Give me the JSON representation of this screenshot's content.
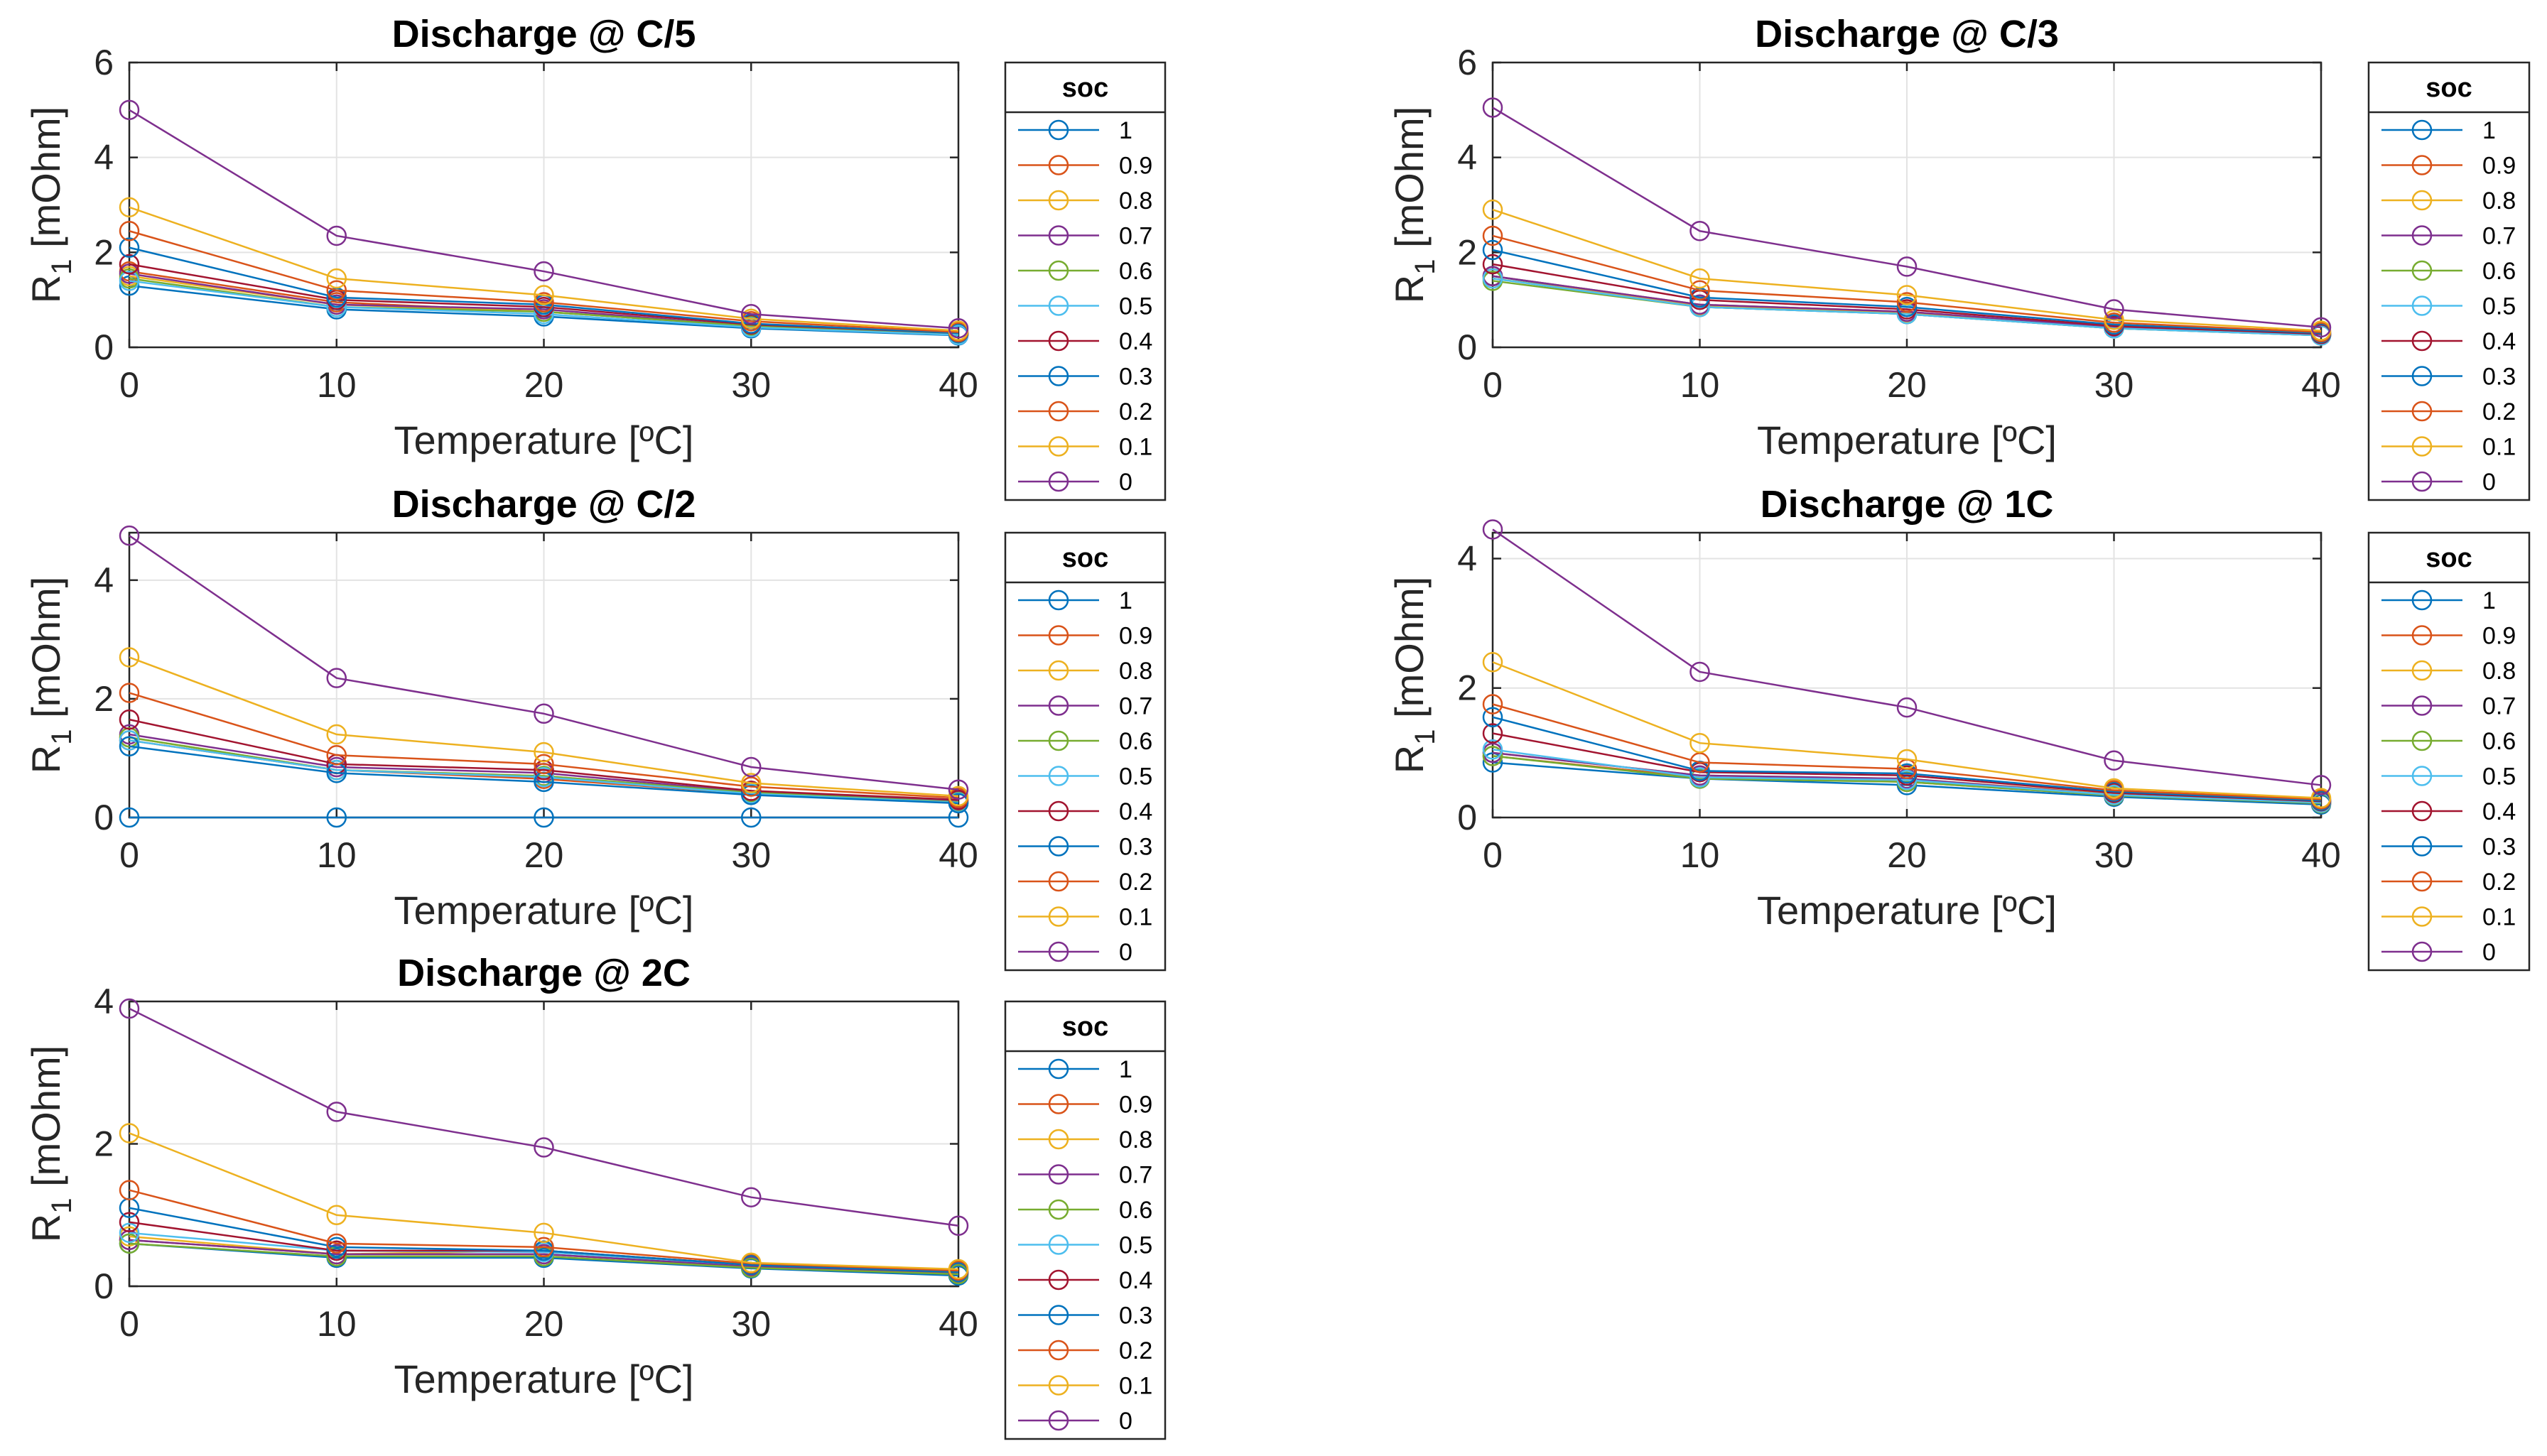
{
  "legend_title": "soc",
  "soc_levels": [
    "1",
    "0.9",
    "0.8",
    "0.7",
    "0.6",
    "0.5",
    "0.4",
    "0.3",
    "0.2",
    "0.1",
    "0"
  ],
  "series_colors": [
    "#0072BD",
    "#D95319",
    "#EDB120",
    "#7E2F8E",
    "#77AC30",
    "#4DBEEE",
    "#A2142F",
    "#0072BD",
    "#D95319",
    "#EDB120",
    "#7E2F8E"
  ],
  "chart_data": [
    {
      "type": "line",
      "title": "Discharge @ C/5",
      "xlabel": "Temperature [ºC]",
      "ylabel_main": "R",
      "ylabel_sub": "1",
      "ylabel_rest": " [mOhm]",
      "x": [
        0,
        10,
        20,
        30,
        40
      ],
      "xlim": [
        0,
        40
      ],
      "ylim": [
        0,
        6
      ],
      "yticks": [
        0,
        2,
        4,
        6
      ],
      "grid": true,
      "legend": "right",
      "series": [
        {
          "name": "1",
          "values": [
            1.3,
            0.8,
            0.65,
            0.4,
            0.25
          ]
        },
        {
          "name": "0.9",
          "values": [
            1.6,
            0.95,
            0.75,
            0.45,
            0.28
          ]
        },
        {
          "name": "0.8",
          "values": [
            1.5,
            0.9,
            0.75,
            0.45,
            0.27
          ]
        },
        {
          "name": "0.7",
          "values": [
            1.55,
            0.9,
            0.8,
            0.45,
            0.28
          ]
        },
        {
          "name": "0.6",
          "values": [
            1.45,
            0.85,
            0.75,
            0.45,
            0.27
          ]
        },
        {
          "name": "0.5",
          "values": [
            1.4,
            0.85,
            0.7,
            0.42,
            0.26
          ]
        },
        {
          "name": "0.4",
          "values": [
            1.75,
            1.0,
            0.85,
            0.48,
            0.3
          ]
        },
        {
          "name": "0.3",
          "values": [
            2.1,
            1.05,
            0.9,
            0.5,
            0.3
          ]
        },
        {
          "name": "0.2",
          "values": [
            2.45,
            1.2,
            0.95,
            0.55,
            0.32
          ]
        },
        {
          "name": "0.1",
          "values": [
            2.95,
            1.45,
            1.1,
            0.6,
            0.35
          ]
        },
        {
          "name": "0",
          "values": [
            5.0,
            2.35,
            1.6,
            0.7,
            0.4
          ]
        }
      ]
    },
    {
      "type": "line",
      "title": "Discharge @ C/3",
      "xlabel": "Temperature [ºC]",
      "ylabel_main": "R",
      "ylabel_sub": "1",
      "ylabel_rest": " [mOhm]",
      "x": [
        0,
        10,
        20,
        30,
        40
      ],
      "xlim": [
        0,
        40
      ],
      "ylim": [
        0,
        6
      ],
      "yticks": [
        0,
        2,
        4,
        6
      ],
      "grid": true,
      "legend": "right",
      "series": [
        {
          "name": "1",
          "values": [
            1.5,
            0.85,
            0.7,
            0.4,
            0.25
          ]
        },
        {
          "name": "0.9",
          "values": [
            1.5,
            0.9,
            0.75,
            0.42,
            0.26
          ]
        },
        {
          "name": "0.8",
          "values": [
            1.45,
            0.88,
            0.72,
            0.42,
            0.26
          ]
        },
        {
          "name": "0.7",
          "values": [
            1.5,
            0.9,
            0.75,
            0.43,
            0.27
          ]
        },
        {
          "name": "0.6",
          "values": [
            1.4,
            0.85,
            0.7,
            0.4,
            0.25
          ]
        },
        {
          "name": "0.5",
          "values": [
            1.45,
            0.85,
            0.7,
            0.4,
            0.25
          ]
        },
        {
          "name": "0.4",
          "values": [
            1.75,
            1.0,
            0.8,
            0.45,
            0.28
          ]
        },
        {
          "name": "0.3",
          "values": [
            2.05,
            1.05,
            0.85,
            0.48,
            0.3
          ]
        },
        {
          "name": "0.2",
          "values": [
            2.35,
            1.2,
            0.95,
            0.52,
            0.32
          ]
        },
        {
          "name": "0.1",
          "values": [
            2.9,
            1.45,
            1.1,
            0.58,
            0.35
          ]
        },
        {
          "name": "0",
          "values": [
            5.05,
            2.45,
            1.7,
            0.8,
            0.42
          ]
        }
      ]
    },
    {
      "type": "line",
      "title": "Discharge @ C/2",
      "xlabel": "Temperature [ºC]",
      "ylabel_main": "R",
      "ylabel_sub": "1",
      "ylabel_rest": " [mOhm]",
      "x": [
        0,
        10,
        20,
        30,
        40
      ],
      "xlim": [
        0,
        40
      ],
      "ylim": [
        0,
        4.8
      ],
      "yticks": [
        0,
        2,
        4
      ],
      "grid": true,
      "legend": "right",
      "series": [
        {
          "name": "1",
          "values": [
            0,
            0,
            0,
            0,
            0
          ]
        },
        {
          "name": "0.9",
          "values": [
            1.3,
            0.8,
            0.65,
            0.4,
            0.25
          ]
        },
        {
          "name": "0.8",
          "values": [
            1.35,
            0.8,
            0.7,
            0.42,
            0.26
          ]
        },
        {
          "name": "0.7",
          "values": [
            1.4,
            0.85,
            0.75,
            0.43,
            0.28
          ]
        },
        {
          "name": "0.6",
          "values": [
            1.35,
            0.8,
            0.7,
            0.42,
            0.26
          ]
        },
        {
          "name": "0.5",
          "values": [
            1.3,
            0.8,
            0.68,
            0.4,
            0.25
          ]
        },
        {
          "name": "0.4",
          "values": [
            1.65,
            0.9,
            0.8,
            0.45,
            0.3
          ]
        },
        {
          "name": "0.3",
          "values": [
            1.2,
            0.75,
            0.6,
            0.38,
            0.24
          ]
        },
        {
          "name": "0.2",
          "values": [
            2.1,
            1.05,
            0.9,
            0.52,
            0.33
          ]
        },
        {
          "name": "0.1",
          "values": [
            2.7,
            1.4,
            1.1,
            0.58,
            0.36
          ]
        },
        {
          "name": "0",
          "values": [
            4.75,
            2.35,
            1.75,
            0.85,
            0.47
          ]
        }
      ]
    },
    {
      "type": "line",
      "title": "Discharge @ 1C",
      "xlabel": "Temperature [ºC]",
      "ylabel_main": "R",
      "ylabel_sub": "1",
      "ylabel_rest": " [mOhm]",
      "x": [
        0,
        10,
        20,
        30,
        40
      ],
      "xlim": [
        0,
        40
      ],
      "ylim": [
        0,
        4.4
      ],
      "yticks": [
        0,
        2,
        4
      ],
      "grid": true,
      "legend": "right",
      "series": [
        {
          "name": "1",
          "values": [
            0.85,
            0.6,
            0.5,
            0.32,
            0.2
          ]
        },
        {
          "name": "0.9",
          "values": [
            0.95,
            0.62,
            0.55,
            0.34,
            0.22
          ]
        },
        {
          "name": "0.8",
          "values": [
            1.0,
            0.65,
            0.6,
            0.36,
            0.24
          ]
        },
        {
          "name": "0.7",
          "values": [
            1.0,
            0.65,
            0.6,
            0.35,
            0.23
          ]
        },
        {
          "name": "0.6",
          "values": [
            0.95,
            0.6,
            0.55,
            0.34,
            0.22
          ]
        },
        {
          "name": "0.5",
          "values": [
            1.05,
            0.62,
            0.58,
            0.35,
            0.23
          ]
        },
        {
          "name": "0.4",
          "values": [
            1.3,
            0.7,
            0.65,
            0.38,
            0.25
          ]
        },
        {
          "name": "0.3",
          "values": [
            1.55,
            0.72,
            0.68,
            0.4,
            0.26
          ]
        },
        {
          "name": "0.2",
          "values": [
            1.75,
            0.85,
            0.75,
            0.42,
            0.28
          ]
        },
        {
          "name": "0.1",
          "values": [
            2.4,
            1.15,
            0.9,
            0.45,
            0.3
          ]
        },
        {
          "name": "0",
          "values": [
            4.45,
            2.25,
            1.7,
            0.88,
            0.5
          ]
        }
      ]
    },
    {
      "type": "line",
      "title": "Discharge @ 2C",
      "xlabel": "Temperature [ºC]",
      "ylabel_main": "R",
      "ylabel_sub": "1",
      "ylabel_rest": " [mOhm]",
      "x": [
        0,
        10,
        20,
        30,
        40
      ],
      "xlim": [
        0,
        40
      ],
      "ylim": [
        0,
        4
      ],
      "yticks": [
        0,
        2,
        4
      ],
      "grid": true,
      "legend": "right",
      "series": [
        {
          "name": "1",
          "values": [
            0.6,
            0.4,
            0.4,
            0.25,
            0.15
          ]
        },
        {
          "name": "0.9",
          "values": [
            0.65,
            0.45,
            0.45,
            0.28,
            0.18
          ]
        },
        {
          "name": "0.8",
          "values": [
            0.7,
            0.45,
            0.5,
            0.3,
            0.2
          ]
        },
        {
          "name": "0.7",
          "values": [
            0.65,
            0.45,
            0.45,
            0.28,
            0.18
          ]
        },
        {
          "name": "0.6",
          "values": [
            0.6,
            0.42,
            0.42,
            0.26,
            0.17
          ]
        },
        {
          "name": "0.5",
          "values": [
            0.75,
            0.5,
            0.48,
            0.3,
            0.2
          ]
        },
        {
          "name": "0.4",
          "values": [
            0.9,
            0.5,
            0.5,
            0.3,
            0.2
          ]
        },
        {
          "name": "0.3",
          "values": [
            1.1,
            0.55,
            0.5,
            0.3,
            0.2
          ]
        },
        {
          "name": "0.2",
          "values": [
            1.35,
            0.6,
            0.55,
            0.32,
            0.22
          ]
        },
        {
          "name": "0.1",
          "values": [
            2.15,
            1.0,
            0.75,
            0.33,
            0.24
          ]
        },
        {
          "name": "0",
          "values": [
            3.9,
            2.45,
            1.95,
            1.25,
            0.85
          ]
        }
      ]
    }
  ]
}
